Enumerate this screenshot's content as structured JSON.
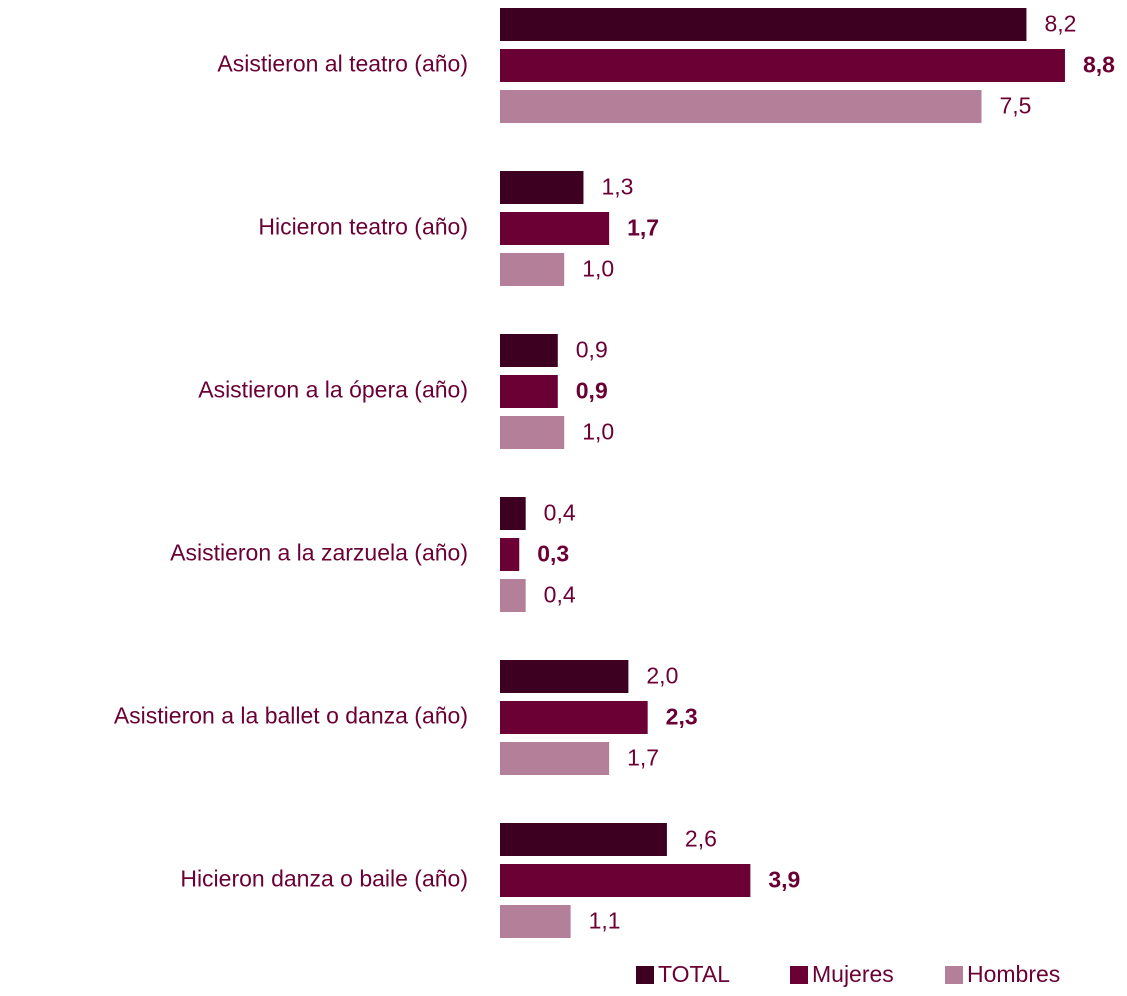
{
  "chart_data": {
    "type": "bar",
    "orientation": "horizontal",
    "categories": [
      "Asistieron al teatro (año)",
      "Hicieron teatro (año)",
      "Asistieron a la ópera (año)",
      "Asistieron a la zarzuela (año)",
      "Asistieron a la ballet o danza (año)",
      "Hicieron danza o baile (año)"
    ],
    "series": [
      {
        "name": "TOTAL",
        "color": "#3d0020",
        "values": [
          8.2,
          1.3,
          0.9,
          0.4,
          2.0,
          2.6
        ],
        "value_labels": [
          "8,2",
          "1,3",
          "0,9",
          "0,4",
          "2,0",
          "2,6"
        ]
      },
      {
        "name": "Mujeres",
        "color": "#6b0035",
        "values": [
          8.8,
          1.7,
          0.9,
          0.3,
          2.3,
          3.9
        ],
        "value_labels": [
          "8,8",
          "1,7",
          "0,9",
          "0,3",
          "2,3",
          "3,9"
        ]
      },
      {
        "name": "Hombres",
        "color": "#b48099",
        "values": [
          7.5,
          1.0,
          1.0,
          0.4,
          1.7,
          1.1
        ],
        "value_labels": [
          "7,5",
          "1,0",
          "1,0",
          "0,4",
          "1,7",
          "1,1"
        ]
      }
    ],
    "legend": "bottom-right"
  }
}
